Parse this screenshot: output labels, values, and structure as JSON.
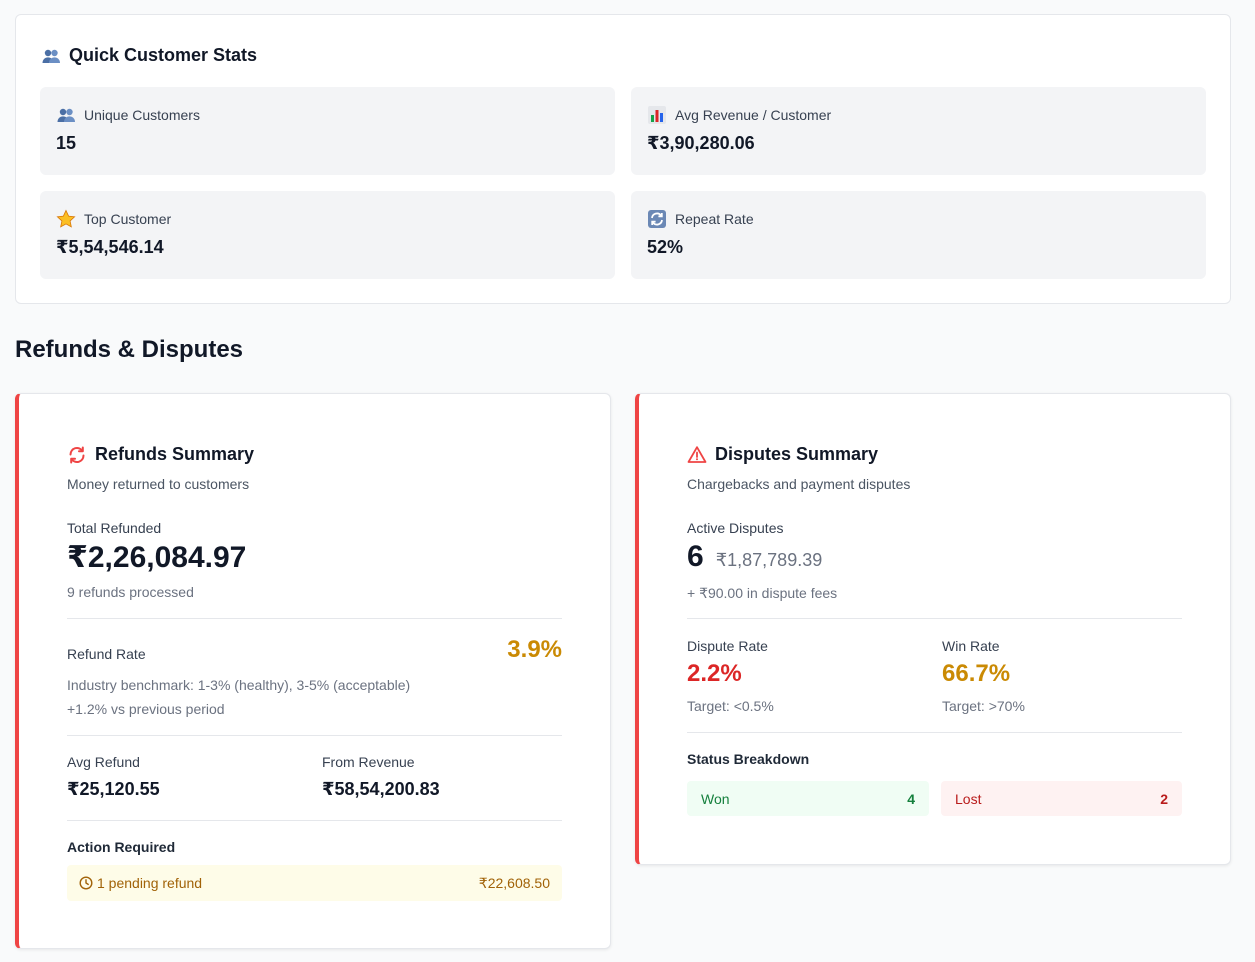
{
  "customer_stats": {
    "title": "Quick Customer Stats",
    "title_icon": "users-icon",
    "tiles": [
      {
        "label": "Unique Customers",
        "value": "15",
        "icon": "users-icon"
      },
      {
        "label": "Avg Revenue / Customer",
        "value": "₹3,90,280.06",
        "icon": "bar-chart-icon"
      },
      {
        "label": "Top Customer",
        "value": "₹5,54,546.14",
        "icon": "star-icon"
      },
      {
        "label": "Repeat Rate",
        "value": "52%",
        "icon": "refresh-icon"
      }
    ]
  },
  "section": {
    "title": "Refunds & Disputes"
  },
  "refunds": {
    "title": "Refunds Summary",
    "icon": "refund-arrows-icon",
    "subtitle": "Money returned to customers",
    "total_label": "Total Refunded",
    "total_value": "₹2,26,084.97",
    "count_text": "9 refunds processed",
    "rate_label": "Refund Rate",
    "rate_value": "3.9%",
    "benchmark": "Industry benchmark: 1-3% (healthy), 3-5% (acceptable)",
    "vs_previous": "+1.2% vs previous period",
    "avg_label": "Avg Refund",
    "avg_value": "₹25,120.55",
    "from_label": "From Revenue",
    "from_value": "₹58,54,200.83",
    "action_label": "Action Required",
    "pending_text": "1 pending refund",
    "pending_amount": "₹22,608.50"
  },
  "disputes": {
    "title": "Disputes Summary",
    "icon": "warning-triangle-icon",
    "subtitle": "Chargebacks and payment disputes",
    "active_label": "Active Disputes",
    "active_count": "6",
    "active_amount": "₹1,87,789.39",
    "fees_text": "+ ₹90.00 in dispute fees",
    "dispute_rate_label": "Dispute Rate",
    "dispute_rate_value": "2.2%",
    "dispute_target": "Target: <0.5%",
    "win_rate_label": "Win Rate",
    "win_rate_value": "66.7%",
    "win_target": "Target: >70%",
    "breakdown_label": "Status Breakdown",
    "won_label": "Won",
    "won_count": "4",
    "lost_label": "Lost",
    "lost_count": "2"
  },
  "colors": {
    "accent_red": "#ef4444",
    "warning_amber": "#ca8a04",
    "danger_red": "#dc2626"
  }
}
